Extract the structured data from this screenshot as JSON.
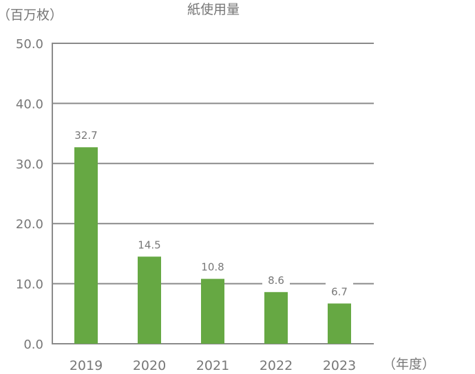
{
  "chart_data": {
    "type": "bar",
    "title": "紙使用量",
    "ylabel": "（百万枚）",
    "xlabel": "（年度）",
    "categories": [
      "2019",
      "2020",
      "2021",
      "2022",
      "2023"
    ],
    "values": [
      32.7,
      14.5,
      10.8,
      8.6,
      6.7
    ],
    "value_labels": [
      "32.7",
      "14.5",
      "10.8",
      "8.6",
      "6.7"
    ],
    "y_ticks": [
      0,
      10,
      20,
      30,
      40,
      50
    ],
    "y_tick_labels": [
      "0.0",
      "10.0",
      "20.0",
      "30.0",
      "40.0",
      "50.0"
    ],
    "ylim": [
      0,
      50
    ],
    "grid": true,
    "legend": "none",
    "colors": {
      "bar": "#66a843",
      "grid": "#8a8a8a",
      "text": "#777777"
    }
  }
}
